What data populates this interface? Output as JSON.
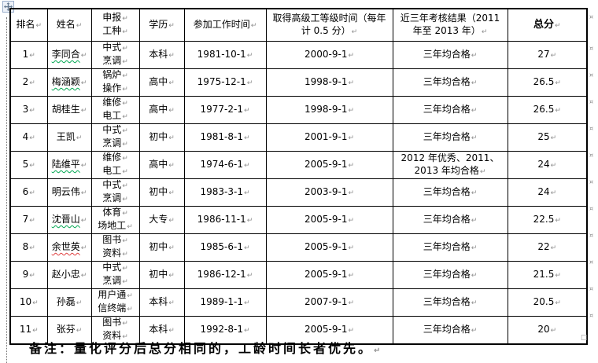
{
  "colors": {
    "background": "#ffffff",
    "text": "#000000",
    "table_border": "#000000",
    "mark": "#8f8f8f",
    "underline_green": "#00a650",
    "underline_red": "#e04040",
    "handle_icon": "#64788f",
    "handle_border": "#9aaecb",
    "handle_bg": "#edf1f8",
    "boundary_line": "#6e6e6e"
  },
  "marks": {
    "end_of_cell": "↵",
    "end_of_row": "¤",
    "after_table": "□"
  },
  "header": {
    "rank": "排名",
    "name": "姓名",
    "trade_lines": [
      "申报",
      "工种"
    ],
    "education": "学历",
    "work_start": "参加工作时间",
    "senior_time": "取得高级工等级时间（每年计 0.5 分）",
    "assessment": "近三年考核结果（2011 年至 2013 年）",
    "total": "总分"
  },
  "rows": [
    {
      "rank": "1",
      "name": "李同合",
      "name_check": "green",
      "trade": [
        "中式",
        "烹调"
      ],
      "education": "本科",
      "work_start": "1981-10-1",
      "senior": "2000-9-1",
      "assessment": "三年均合格",
      "total": "27"
    },
    {
      "rank": "2",
      "name": "梅涵颖",
      "name_check": "green",
      "trade": [
        "锅炉",
        "操作"
      ],
      "education": "高中",
      "work_start": "1975-12-1",
      "senior": "1998-9-1",
      "assessment": "三年均合格",
      "total": "26.5"
    },
    {
      "rank": "3",
      "name": "胡桂生",
      "name_check": "none",
      "trade": [
        "维修",
        "电工"
      ],
      "education": "高中",
      "work_start": "1977-2-1",
      "senior": "1998-9-1",
      "assessment": "三年均合格",
      "total": "26.5"
    },
    {
      "rank": "4",
      "name": "王凯",
      "name_check": "none",
      "trade": [
        "中式",
        "烹调"
      ],
      "education": "初中",
      "work_start": "1981-8-1",
      "senior": "2001-9-1",
      "assessment": "三年均合格",
      "total": "25"
    },
    {
      "rank": "5",
      "name": "陆维平",
      "name_check": "green",
      "trade": [
        "维修",
        "电工"
      ],
      "education": "高中",
      "work_start": "1974-6-1",
      "senior": "2005-9-1",
      "assessment": "2012 年优秀、2011、2013 年均合格",
      "total": "24"
    },
    {
      "rank": "6",
      "name": "明云伟",
      "name_check": "none",
      "trade": [
        "中式",
        "烹调"
      ],
      "education": "初中",
      "work_start": "1983-3-1",
      "senior": "2003-9-1",
      "assessment": "三年均合格",
      "total": "24"
    },
    {
      "rank": "7",
      "name": "沈晋山",
      "name_check": "green",
      "trade": [
        "体育",
        "场地工"
      ],
      "education": "大专",
      "work_start": "1986-11-1",
      "senior": "2005-9-1",
      "assessment": "三年均合格",
      "total": "22.5"
    },
    {
      "rank": "8",
      "name": "余世英",
      "name_check": "red",
      "trade": [
        "图书",
        "资料"
      ],
      "education": "初中",
      "work_start": "1985-6-1",
      "senior": "2005-9-1",
      "assessment": "三年均合格",
      "total": "22"
    },
    {
      "rank": "9",
      "name": "赵小忠",
      "name_check": "none",
      "trade": [
        "中式",
        "烹调"
      ],
      "education": "初中",
      "work_start": "1986-12-1",
      "senior": "2005-9-1",
      "assessment": "三年均合格",
      "total": "21.5"
    },
    {
      "rank": "10",
      "name": "孙磊",
      "name_check": "none",
      "trade": [
        "用户通",
        "信终端"
      ],
      "education": "本科",
      "work_start": "1989-1-1",
      "senior": "2007-9-1",
      "assessment": "三年均合格",
      "total": "20.5"
    },
    {
      "rank": "11",
      "name": "张芬",
      "name_check": "none",
      "trade": [
        "图书",
        "资料"
      ],
      "education": "本科",
      "work_start": "1992-8-1",
      "senior": "2005-9-1",
      "assessment": "三年均合格",
      "total": "20"
    }
  ],
  "note": "备注：量化评分后总分相同的，工龄时间长者优先。"
}
